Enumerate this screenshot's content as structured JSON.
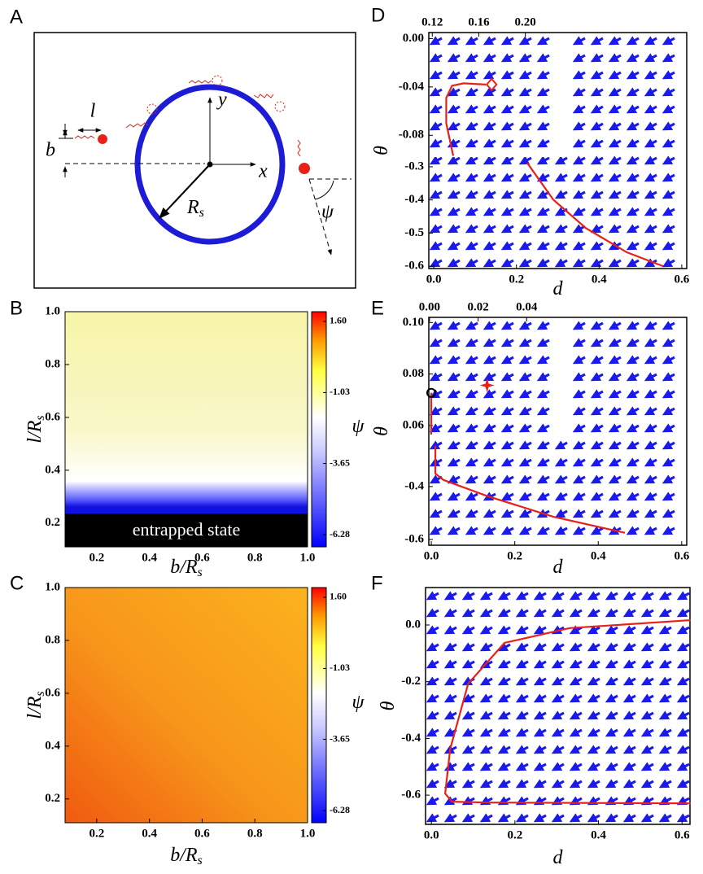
{
  "panels": [
    "A",
    "B",
    "C",
    "D",
    "E",
    "F"
  ],
  "diagram": {
    "l": "l",
    "b": "b",
    "y": "y",
    "x": "x",
    "radius": "R",
    "radius_sub": "s",
    "angle": "ψ"
  },
  "chart_data": [
    {
      "type": "heatmap",
      "style": "warm-cool",
      "xlabel": "b/R",
      "xlabel_sub": "s",
      "ylabel": "l/R",
      "ylabel_sub": "s",
      "xlim": [
        0.08,
        1.0
      ],
      "ylim": [
        0.11,
        1.0
      ],
      "xticks": [
        0.2,
        0.4,
        0.6,
        0.8,
        {
          "value": 1.0,
          "label": "1.0"
        }
      ],
      "yticks": [
        0.2,
        0.4,
        0.6,
        0.8,
        {
          "value": 1.0,
          "label": "1.0"
        }
      ],
      "colorbar": {
        "label": "ψ",
        "lim": [
          -6.73,
          1.96
        ],
        "ticks": [
          {
            "value": 1.6,
            "label": "1.60"
          },
          -1.03,
          -3.65,
          -6.28
        ]
      },
      "annotation": "entrapped state",
      "entrapped_below": 0.235
    },
    {
      "type": "heatmap",
      "style": "orange",
      "xlabel": "b/R",
      "xlabel_sub": "s",
      "ylabel": "l/R",
      "ylabel_sub": "s",
      "xlim": [
        0.08,
        1.0
      ],
      "ylim": [
        0.11,
        1.0
      ],
      "xticks": [
        0.2,
        0.4,
        0.6,
        0.8,
        {
          "value": 1.0,
          "label": "1.0"
        }
      ],
      "yticks": [
        0.2,
        0.4,
        0.6,
        0.8,
        {
          "value": 1.0,
          "label": "1.0"
        }
      ],
      "colorbar": {
        "label": "ψ",
        "lim": [
          -6.73,
          1.96
        ],
        "ticks": [
          {
            "value": 1.6,
            "label": "1.60"
          },
          -1.03,
          -3.65,
          -6.28
        ]
      }
    },
    {
      "type": "quiver",
      "xlabel": "d",
      "ylabel": "θ",
      "xlim": [
        -0.012,
        0.612
      ],
      "ylim": [
        -0.607,
        0.105
      ],
      "xticks": [
        {
          "value": 0,
          "label": "0.0"
        },
        0.2,
        0.4,
        0.6
      ],
      "yticks": [
        -0.3,
        -0.4,
        -0.5,
        -0.6
      ],
      "curves": [
        {
          "color": "#e8201a",
          "x": [
            0.226,
            0.289,
            0.368,
            0.467,
            0.555
          ],
          "y": [
            -0.288,
            -0.399,
            -0.485,
            -0.558,
            -0.6
          ]
        }
      ],
      "inset": {
        "xlim": [
          0.117,
          0.231
        ],
        "ylim": [
          -0.098,
          0.005
        ],
        "xticks": [
          0.12,
          0.16,
          {
            "value": 0.2,
            "label": "0.20"
          }
        ],
        "yticks": [
          {
            "value": 0,
            "label": "0.00"
          },
          -0.04,
          -0.08
        ],
        "curves": [
          {
            "color": "#e8201a",
            "x": [
              0.138,
              0.132,
              0.132,
              0.137,
              0.147,
              0.166
            ],
            "y": [
              -0.097,
              -0.07,
              -0.049,
              -0.039,
              -0.037,
              -0.038
            ]
          }
        ],
        "markers": [
          {
            "shape": "diamond",
            "color": "#e8201a",
            "x": 0.171,
            "y": -0.038
          }
        ]
      }
    },
    {
      "type": "quiver",
      "xlabel": "d",
      "ylabel": "θ",
      "xlim": [
        -0.006,
        0.612
      ],
      "ylim": [
        -0.622,
        0.24
      ],
      "xticks": [
        {
          "value": 0,
          "label": "0.0"
        },
        0.2,
        0.4,
        0.6
      ],
      "yticks": [
        -0.4,
        -0.6
      ],
      "curves": [
        {
          "color": "#e8201a",
          "x": [
            0.0097,
            0.0097,
            0.029,
            0.136,
            0.292,
            0.464
          ],
          "y": [
            -0.246,
            -0.351,
            -0.375,
            -0.437,
            -0.514,
            -0.575
          ]
        }
      ],
      "inset": {
        "xlim": [
          -0.0003,
          0.0543
        ],
        "ylim": [
          0.0546,
          0.102
        ],
        "xticks": [
          {
            "value": 0,
            "label": "0.00"
          },
          0.02,
          0.04
        ],
        "yticks": [
          {
            "value": 0.1,
            "label": "0.10"
          },
          0.08,
          0.06
        ],
        "curves": [
          {
            "color": "#e8201a",
            "x": [
              0.0007,
              0.0007
            ],
            "y": [
              0.0727,
              0.0565
            ]
          }
        ],
        "markers": [
          {
            "shape": "star",
            "color": "#e8201a",
            "x": 0.0237,
            "y": 0.0756
          },
          {
            "shape": "circle",
            "color": "#000000",
            "x": 0.0007,
            "y": 0.0727
          }
        ]
      }
    },
    {
      "type": "quiver",
      "xlabel": "d",
      "ylabel": "θ",
      "xlim": [
        -0.014,
        0.619
      ],
      "ylim": [
        -0.703,
        0.132
      ],
      "xticks": [
        {
          "value": 0,
          "label": "0.0"
        },
        0.2,
        0.4,
        0.6
      ],
      "yticks": [
        {
          "value": 0,
          "label": "0.0"
        },
        -0.2,
        -0.4,
        -0.6
      ],
      "curves": [
        {
          "color": "#e8201a",
          "x": [
            0.62,
            0.331,
            0.175,
            0.088,
            0.045,
            0.033,
            0.049,
            0.136,
            0.62
          ],
          "y": [
            0.017,
            -0.011,
            -0.063,
            -0.207,
            -0.437,
            -0.594,
            -0.623,
            -0.626,
            -0.629
          ]
        }
      ]
    }
  ]
}
